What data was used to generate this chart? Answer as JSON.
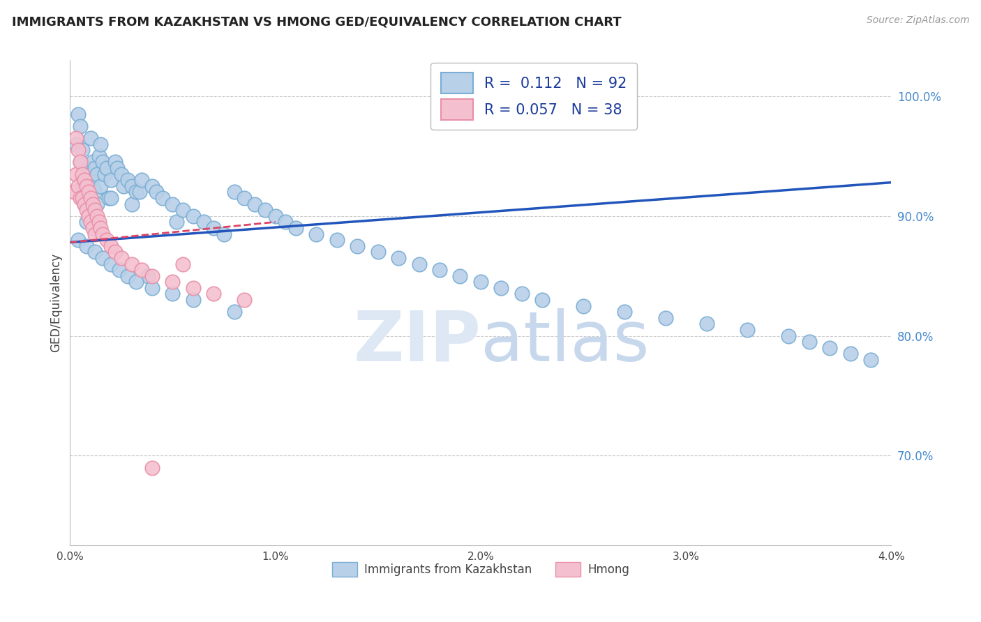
{
  "title": "IMMIGRANTS FROM KAZAKHSTAN VS HMONG GED/EQUIVALENCY CORRELATION CHART",
  "source": "Source: ZipAtlas.com",
  "ylabel": "GED/Equivalency",
  "xlim": [
    0.0,
    0.04
  ],
  "ylim": [
    0.625,
    1.03
  ],
  "xticks": [
    0.0,
    0.01,
    0.02,
    0.03,
    0.04
  ],
  "xtick_labels": [
    "0.0%",
    "1.0%",
    "2.0%",
    "3.0%",
    "4.0%"
  ],
  "ytick_labels": [
    "70.0%",
    "80.0%",
    "90.0%",
    "100.0%"
  ],
  "yticks": [
    0.7,
    0.8,
    0.9,
    1.0
  ],
  "R_kaz": 0.112,
  "N_kaz": 92,
  "R_hmong": 0.057,
  "N_hmong": 38,
  "blue_color": "#b8d0e8",
  "blue_edge": "#7aaed4",
  "pink_color": "#f4c0d0",
  "pink_edge": "#e890a8",
  "blue_line_color": "#2255bb",
  "pink_line_color": "#dd4466",
  "legend_label_kaz": "Immigrants from Kazakhstan",
  "legend_label_hmong": "Hmong",
  "kaz_x": [
    0.0003,
    0.0004,
    0.0005,
    0.0005,
    0.0006,
    0.0006,
    0.0007,
    0.0007,
    0.0008,
    0.0008,
    0.0009,
    0.0009,
    0.001,
    0.001,
    0.001,
    0.0011,
    0.0011,
    0.0012,
    0.0012,
    0.0013,
    0.0013,
    0.0014,
    0.0015,
    0.0015,
    0.0016,
    0.0017,
    0.0018,
    0.0019,
    0.002,
    0.002,
    0.0022,
    0.0023,
    0.0025,
    0.0026,
    0.0028,
    0.003,
    0.003,
    0.0032,
    0.0034,
    0.0035,
    0.0038,
    0.004,
    0.0042,
    0.0045,
    0.005,
    0.0052,
    0.0055,
    0.006,
    0.0065,
    0.007,
    0.0075,
    0.008,
    0.0085,
    0.009,
    0.0095,
    0.01,
    0.0105,
    0.011,
    0.012,
    0.013,
    0.014,
    0.015,
    0.016,
    0.017,
    0.018,
    0.019,
    0.02,
    0.021,
    0.022,
    0.023,
    0.025,
    0.027,
    0.029,
    0.031,
    0.033,
    0.035,
    0.036,
    0.037,
    0.038,
    0.039,
    0.0004,
    0.0008,
    0.0012,
    0.0016,
    0.002,
    0.0024,
    0.0028,
    0.0032,
    0.004,
    0.005,
    0.006,
    0.008
  ],
  "kaz_y": [
    0.96,
    0.985,
    0.975,
    0.945,
    0.93,
    0.955,
    0.925,
    0.91,
    0.92,
    0.895,
    0.94,
    0.905,
    0.965,
    0.935,
    0.915,
    0.945,
    0.925,
    0.94,
    0.92,
    0.935,
    0.91,
    0.95,
    0.96,
    0.925,
    0.945,
    0.935,
    0.94,
    0.915,
    0.93,
    0.915,
    0.945,
    0.94,
    0.935,
    0.925,
    0.93,
    0.925,
    0.91,
    0.92,
    0.92,
    0.93,
    0.85,
    0.925,
    0.92,
    0.915,
    0.91,
    0.895,
    0.905,
    0.9,
    0.895,
    0.89,
    0.885,
    0.92,
    0.915,
    0.91,
    0.905,
    0.9,
    0.895,
    0.89,
    0.885,
    0.88,
    0.875,
    0.87,
    0.865,
    0.86,
    0.855,
    0.85,
    0.845,
    0.84,
    0.835,
    0.83,
    0.825,
    0.82,
    0.815,
    0.81,
    0.805,
    0.8,
    0.795,
    0.79,
    0.785,
    0.78,
    0.88,
    0.875,
    0.87,
    0.865,
    0.86,
    0.855,
    0.85,
    0.845,
    0.84,
    0.835,
    0.83,
    0.82
  ],
  "hmong_x": [
    0.0002,
    0.0003,
    0.0003,
    0.0004,
    0.0004,
    0.0005,
    0.0005,
    0.0006,
    0.0006,
    0.0007,
    0.0007,
    0.0008,
    0.0008,
    0.0009,
    0.0009,
    0.001,
    0.001,
    0.0011,
    0.0011,
    0.0012,
    0.0012,
    0.0013,
    0.0014,
    0.0015,
    0.0016,
    0.0018,
    0.002,
    0.0022,
    0.0025,
    0.003,
    0.0035,
    0.004,
    0.005,
    0.006,
    0.007,
    0.0085,
    0.004,
    0.0055
  ],
  "hmong_y": [
    0.92,
    0.965,
    0.935,
    0.955,
    0.925,
    0.945,
    0.915,
    0.935,
    0.915,
    0.93,
    0.91,
    0.925,
    0.905,
    0.92,
    0.9,
    0.915,
    0.895,
    0.91,
    0.89,
    0.905,
    0.885,
    0.9,
    0.895,
    0.89,
    0.885,
    0.88,
    0.875,
    0.87,
    0.865,
    0.86,
    0.855,
    0.85,
    0.845,
    0.84,
    0.835,
    0.83,
    0.69,
    0.86
  ],
  "kaz_trend_x": [
    0.0,
    0.04
  ],
  "kaz_trend_y": [
    0.878,
    0.928
  ],
  "hmong_trend_x": [
    0.0,
    0.01
  ],
  "hmong_trend_y": [
    0.878,
    0.895
  ]
}
